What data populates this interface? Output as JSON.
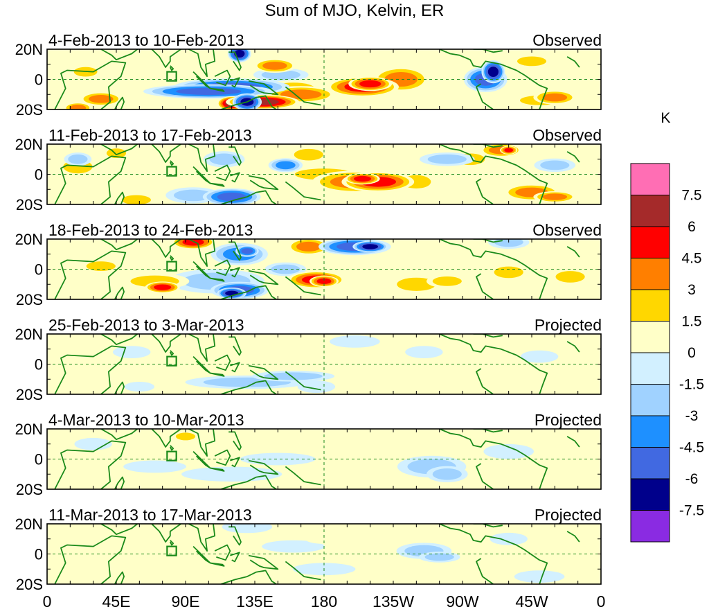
{
  "chart_data": {
    "type": "heatmap",
    "title": "Sum of MJO, Kelvin, ER",
    "panels": [
      {
        "date_range": "4-Feb-2013 to 10-Feb-2013",
        "status": "Observed"
      },
      {
        "date_range": "11-Feb-2013 to 17-Feb-2013",
        "status": "Observed"
      },
      {
        "date_range": "18-Feb-2013 to 24-Feb-2013",
        "status": "Observed"
      },
      {
        "date_range": "25-Feb-2013 to 3-Mar-2013",
        "status": "Projected"
      },
      {
        "date_range": "4-Mar-2013 to 10-Mar-2013",
        "status": "Projected"
      },
      {
        "date_range": "11-Mar-2013 to 17-Mar-2013",
        "status": "Projected"
      }
    ],
    "y_ticks": [
      "20N",
      "0",
      "20S"
    ],
    "y_range": [
      -20,
      20
    ],
    "x_ticks": [
      "0",
      "45E",
      "90E",
      "135E",
      "180",
      "135W",
      "90W",
      "45W",
      "0"
    ],
    "x_range": [
      0,
      360
    ],
    "colorbar": {
      "unit": "K",
      "levels": [
        "7.5",
        "6",
        "4.5",
        "3",
        "1.5",
        "0",
        "-1.5",
        "-3",
        "-4.5",
        "-6",
        "-7.5"
      ],
      "colors": [
        "#ff6eb4",
        "#a52a2a",
        "#ff0000",
        "#ff7f00",
        "#ffd700",
        "#ffffc8",
        "#d2f0ff",
        "#a0d2ff",
        "#1e90ff",
        "#4169e1",
        "#00008b",
        "#8a2be2"
      ]
    },
    "blobs": [
      [
        [
          -8,
          105,
          45,
          5,
          -7
        ],
        [
          -5,
          120,
          40,
          6,
          -6
        ],
        [
          17,
          125,
          8,
          6,
          -8
        ],
        [
          -15,
          130,
          10,
          6,
          -8.5
        ],
        [
          3,
          152,
          20,
          5,
          -4
        ],
        [
          -6,
          160,
          22,
          6,
          4
        ],
        [
          9,
          148,
          15,
          5,
          5.5
        ],
        [
          -10,
          165,
          25,
          6,
          5
        ],
        [
          -12,
          125,
          15,
          6,
          6
        ],
        [
          -16,
          120,
          10,
          5,
          8
        ],
        [
          -15,
          140,
          25,
          5,
          8
        ],
        [
          -5,
          205,
          25,
          7,
          6
        ],
        [
          0,
          230,
          20,
          9,
          5
        ],
        [
          -3,
          210,
          15,
          5,
          6
        ],
        [
          0,
          285,
          15,
          9,
          -7
        ],
        [
          5,
          290,
          8,
          8,
          -8
        ],
        [
          -14,
          320,
          20,
          5,
          4
        ],
        [
          -12,
          330,
          15,
          5,
          5
        ],
        [
          -13,
          35,
          15,
          5,
          5
        ],
        [
          -19,
          20,
          10,
          4,
          5
        ],
        [
          5,
          25,
          12,
          5,
          3
        ],
        [
          12,
          315,
          15,
          5,
          3
        ]
      ],
      [
        [
          -17,
          58,
          15,
          5,
          3
        ],
        [
          5,
          20,
          15,
          7,
          3
        ],
        [
          14,
          45,
          10,
          5,
          3
        ],
        [
          10,
          115,
          15,
          6,
          -4
        ],
        [
          -15,
          120,
          20,
          6,
          -6
        ],
        [
          -14,
          95,
          20,
          6,
          -4
        ],
        [
          6,
          155,
          12,
          5,
          -5
        ],
        [
          13,
          170,
          15,
          6,
          4
        ],
        [
          -5,
          200,
          30,
          8,
          5
        ],
        [
          -5,
          215,
          25,
          7,
          6.5
        ],
        [
          -3,
          205,
          12,
          4,
          7
        ],
        [
          -5,
          240,
          15,
          7,
          4
        ],
        [
          10,
          275,
          15,
          6,
          4
        ],
        [
          16,
          295,
          15,
          5,
          4.5
        ],
        [
          16,
          300,
          6,
          3,
          7
        ],
        [
          -12,
          315,
          20,
          6,
          5
        ],
        [
          -15,
          330,
          15,
          4,
          5.5
        ],
        [
          10,
          260,
          20,
          5,
          -4
        ],
        [
          6,
          330,
          15,
          5,
          -4
        ],
        [
          0,
          180,
          30,
          6,
          3
        ],
        [
          10,
          20,
          10,
          5,
          -3
        ]
      ],
      [
        [
          -8,
          110,
          35,
          9,
          -4
        ],
        [
          -14,
          125,
          20,
          6,
          -6
        ],
        [
          -16,
          120,
          10,
          4,
          -8
        ],
        [
          10,
          125,
          20,
          8,
          -5
        ],
        [
          12,
          130,
          8,
          4,
          -7
        ],
        [
          15,
          200,
          25,
          6,
          -6
        ],
        [
          15,
          210,
          12,
          4,
          -8
        ],
        [
          15,
          170,
          15,
          6,
          5
        ],
        [
          -7,
          175,
          20,
          6,
          6
        ],
        [
          -8,
          180,
          10,
          4,
          7
        ],
        [
          -8,
          70,
          25,
          6,
          4
        ],
        [
          -12,
          75,
          12,
          4,
          6
        ],
        [
          2,
          35,
          15,
          5,
          3
        ],
        [
          18,
          95,
          15,
          5,
          6
        ],
        [
          -10,
          240,
          20,
          7,
          3.5
        ],
        [
          -8,
          260,
          15,
          5,
          4
        ],
        [
          -5,
          340,
          15,
          6,
          3
        ],
        [
          18,
          300,
          15,
          5,
          -3
        ],
        [
          0,
          155,
          15,
          5,
          -3
        ],
        [
          -2,
          300,
          15,
          6,
          3
        ]
      ],
      [
        [
          -12,
          130,
          45,
          5,
          -3
        ],
        [
          -8,
          160,
          30,
          4,
          -3
        ],
        [
          -15,
          175,
          15,
          5,
          -2.5
        ],
        [
          15,
          200,
          20,
          5,
          -2
        ],
        [
          8,
          245,
          15,
          5,
          -1.6
        ],
        [
          10,
          130,
          12,
          5,
          2
        ],
        [
          -2,
          190,
          25,
          4,
          1.8
        ],
        [
          -3,
          220,
          15,
          4,
          1.6
        ],
        [
          8,
          55,
          15,
          5,
          -2
        ],
        [
          -15,
          60,
          12,
          4,
          -2
        ],
        [
          -15,
          100,
          12,
          4,
          2
        ],
        [
          5,
          320,
          15,
          5,
          -1.6
        ],
        [
          -8,
          295,
          12,
          5,
          2
        ]
      ],
      [
        [
          15,
          90,
          10,
          4,
          4
        ],
        [
          14,
          75,
          20,
          6,
          2
        ],
        [
          -5,
          70,
          25,
          5,
          -2
        ],
        [
          -10,
          120,
          40,
          6,
          -2
        ],
        [
          0,
          150,
          30,
          5,
          -1.6
        ],
        [
          -5,
          250,
          25,
          8,
          -3
        ],
        [
          -10,
          260,
          15,
          6,
          -3.2
        ],
        [
          5,
          300,
          20,
          6,
          -2
        ],
        [
          5,
          210,
          20,
          6,
          1.6
        ],
        [
          -5,
          330,
          20,
          6,
          1.6
        ],
        [
          10,
          30,
          15,
          5,
          -1.6
        ]
      ],
      [
        [
          18,
          130,
          20,
          5,
          -2
        ],
        [
          5,
          160,
          25,
          5,
          -1.6
        ],
        [
          -10,
          180,
          25,
          5,
          -1.6
        ],
        [
          10,
          180,
          15,
          4,
          2
        ],
        [
          13,
          205,
          15,
          4,
          2.5
        ],
        [
          10,
          235,
          20,
          5,
          1.8
        ],
        [
          2,
          245,
          20,
          6,
          -3
        ],
        [
          -2,
          255,
          15,
          4,
          -3.2
        ],
        [
          -18,
          20,
          15,
          4,
          1.8
        ],
        [
          -17,
          70,
          25,
          4,
          2
        ],
        [
          10,
          300,
          15,
          5,
          -1.6
        ],
        [
          -2,
          90,
          15,
          4,
          1.6
        ],
        [
          -15,
          320,
          20,
          5,
          -1.6
        ]
      ]
    ]
  }
}
